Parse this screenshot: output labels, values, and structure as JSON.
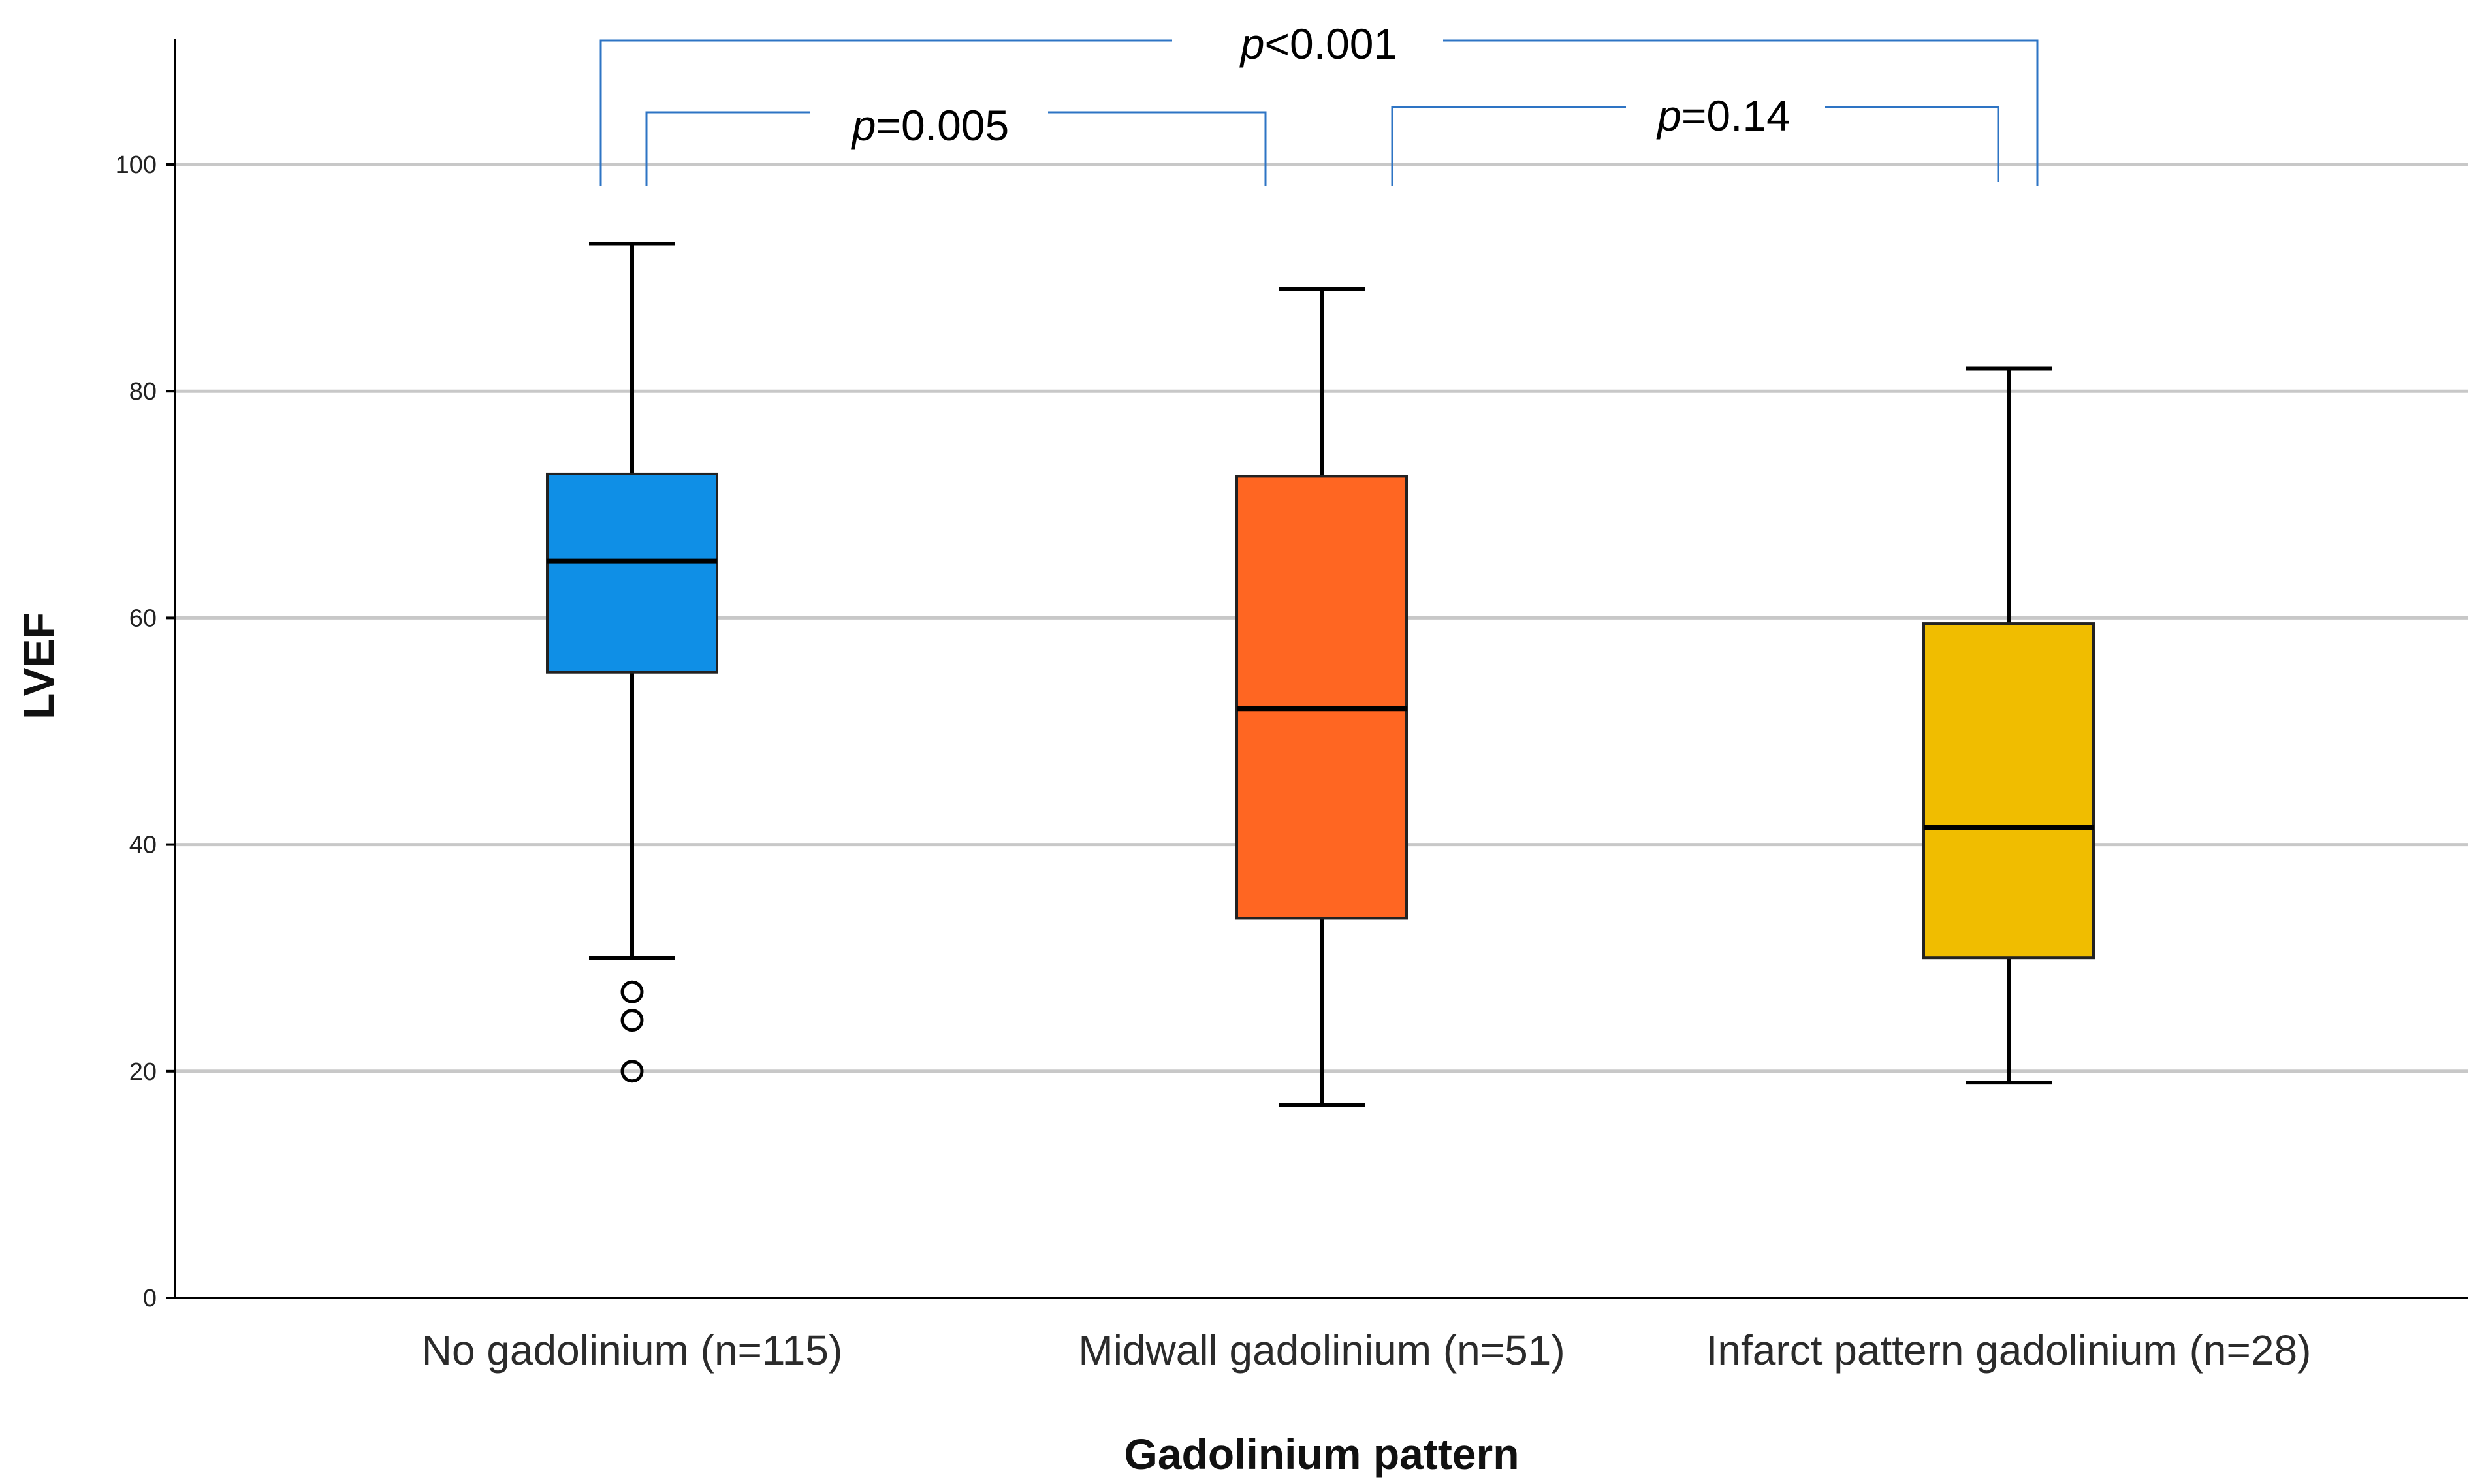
{
  "chart_data": {
    "type": "boxplot",
    "title": "",
    "xlabel": "Gadolinium pattern",
    "ylabel": "LVEF",
    "ylim": [
      0,
      110
    ],
    "yticks": [
      0,
      20,
      40,
      60,
      80,
      100
    ],
    "grid": true,
    "categories": [
      "No gadolinium (n=115)",
      "Midwall gadolinium (n=51)",
      "Infarct pattern gadolinium (n=28)"
    ],
    "series": [
      {
        "name": "No gadolinium (n=115)",
        "color": "#0f8fe6",
        "whisker_low": 30,
        "q1": 55.2,
        "median": 65,
        "q3": 72.7,
        "whisker_high": 93,
        "outliers": [
          27,
          24.5,
          20
        ]
      },
      {
        "name": "Midwall gadolinium (n=51)",
        "color": "#ff6622",
        "whisker_low": 17,
        "q1": 33.5,
        "median": 52,
        "q3": 72.5,
        "whisker_high": 89,
        "outliers": []
      },
      {
        "name": "Infarct pattern gadolinium (n=28)",
        "color": "#f0bd00",
        "whisker_low": 19,
        "q1": 30,
        "median": 41.5,
        "q3": 59.5,
        "whisker_high": 82,
        "outliers": []
      }
    ],
    "comparisons": [
      {
        "from": 0,
        "to": 2,
        "label_italic": "p",
        "label_rest": "<0.001"
      },
      {
        "from": 0,
        "to": 1,
        "label_italic": "p",
        "label_rest": "=0.005"
      },
      {
        "from": 1,
        "to": 2,
        "label_italic": "p",
        "label_rest": "=0.14"
      }
    ],
    "bracket_color": "#2e74c4"
  }
}
